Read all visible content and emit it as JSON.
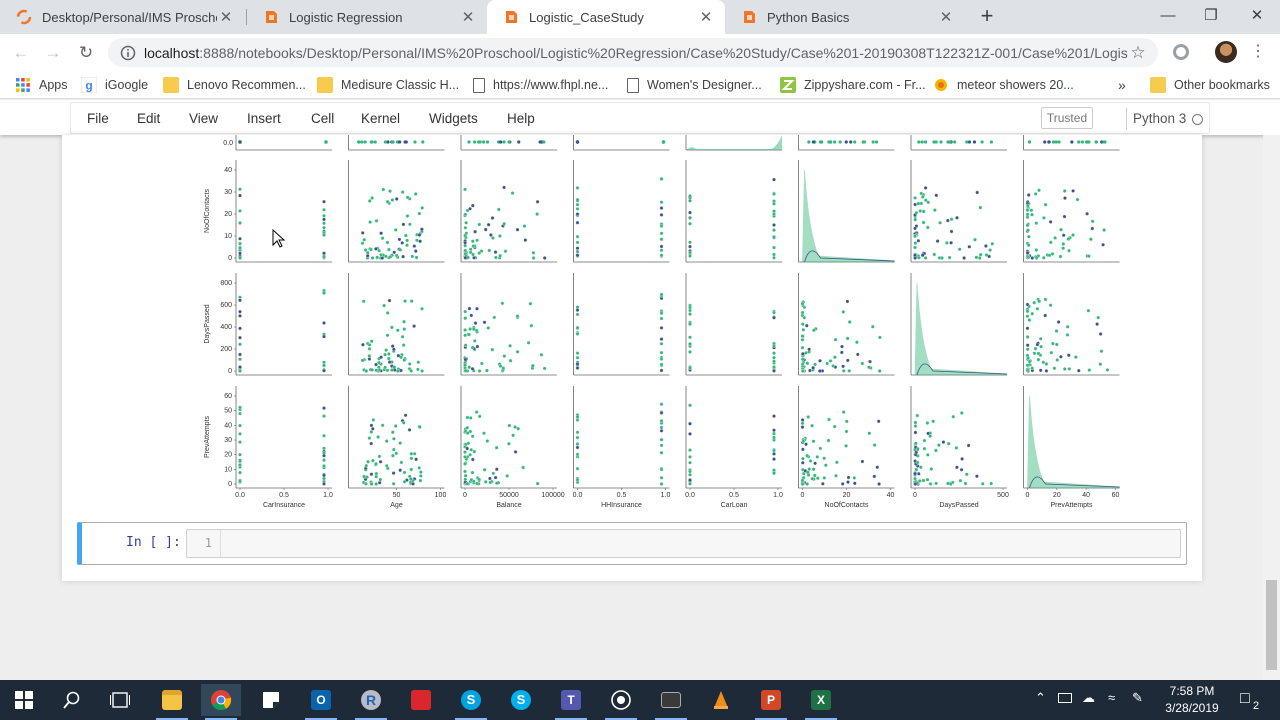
{
  "browser": {
    "tabs": [
      {
        "title": "Desktop/Personal/IMS Proschool",
        "icon": "jupyter-icon",
        "active": false
      },
      {
        "title": "Logistic Regression",
        "icon": "notebook-icon",
        "active": false
      },
      {
        "title": "Logistic_CaseStudy",
        "icon": "notebook-icon",
        "active": true
      },
      {
        "title": "Python Basics",
        "icon": "notebook-icon",
        "active": false
      }
    ],
    "url_host": "localhost",
    "url_path": ":8888/notebooks/Desktop/Personal/IMS%20Proschool/Logistic%20Regression/Case%20Study/Case%201-20190308T122321Z-001/Case%201/Logis...",
    "bookmarks": [
      {
        "label": "Apps",
        "icon": "apps-grid-icon"
      },
      {
        "label": "iGoogle",
        "icon": "google-icon"
      },
      {
        "label": "Lenovo Recommen...",
        "icon": "folder-icon"
      },
      {
        "label": "Medisure Classic H...",
        "icon": "folder-icon"
      },
      {
        "label": "https://www.fhpl.ne...",
        "icon": "page-icon"
      },
      {
        "label": "Women's Designer...",
        "icon": "page-icon"
      },
      {
        "label": "Zippyshare.com - Fr...",
        "icon": "zippyshare-icon"
      },
      {
        "label": "meteor showers 20...",
        "icon": "meteor-icon"
      }
    ],
    "bookmarks_overflow": "»",
    "other_bookmarks": "Other bookmarks"
  },
  "jupyter": {
    "menu": [
      "File",
      "Edit",
      "View",
      "Insert",
      "Cell",
      "Kernel",
      "Widgets",
      "Help"
    ],
    "trusted_label": "Trusted",
    "kernel_name": "Python 3",
    "cell_prompt": "In [ ]:",
    "line_number": "1"
  },
  "chart_data": {
    "type": "scatter",
    "kind": "pairplot",
    "variables": [
      "CarInsurance",
      "Age",
      "Balance",
      "HHInsurance",
      "CarLoan",
      "NoOfContacts",
      "DaysPassed",
      "PrevAttempts"
    ],
    "visible_rows": [
      "NoOfContacts",
      "DaysPassed",
      "PrevAttempts"
    ],
    "diagonal": "kde",
    "hue_colors": [
      "#3b528b",
      "#35b779"
    ],
    "y_ticks": {
      "top_partial": [
        "0.0"
      ],
      "NoOfContacts": [
        "0",
        "10",
        "20",
        "30",
        "40"
      ],
      "DaysPassed": [
        "0",
        "200",
        "400",
        "600",
        "800"
      ],
      "PrevAttempts": [
        "0",
        "10",
        "20",
        "30",
        "40",
        "50",
        "60"
      ]
    },
    "x_ticks": {
      "CarInsurance": [
        "0.0",
        "0.5",
        "1.0"
      ],
      "Age": [
        "50",
        "100"
      ],
      "Balance": [
        "0",
        "50000",
        "100000"
      ],
      "HHInsurance": [
        "0.0",
        "0.5",
        "1.0"
      ],
      "CarLoan": [
        "0.0",
        "0.5",
        "1.0"
      ],
      "NoOfContacts": [
        "0",
        "20",
        "40"
      ],
      "DaysPassed": [
        "0",
        "500"
      ],
      "PrevAttempts": [
        "0",
        "20",
        "40",
        "60"
      ]
    }
  },
  "taskbar": {
    "time": "7:58 PM",
    "date": "3/28/2019",
    "notifications": "2"
  }
}
